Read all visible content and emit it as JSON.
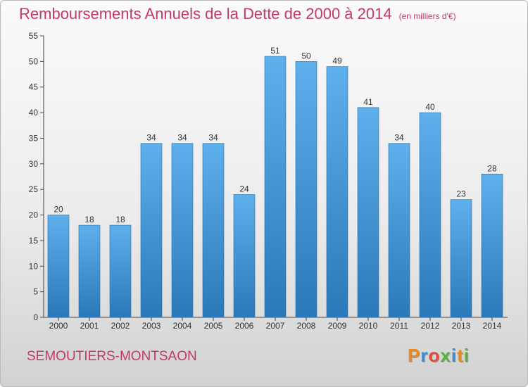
{
  "chart_data": {
    "type": "bar",
    "title": "Remboursements Annuels de la Dette de 2000 à 2014",
    "subtitle": "(en milliers d'€)",
    "categories": [
      "2000",
      "2001",
      "2002",
      "2003",
      "2004",
      "2005",
      "2006",
      "2007",
      "2008",
      "2009",
      "2010",
      "2011",
      "2012",
      "2013",
      "2014"
    ],
    "values": [
      20,
      18,
      18,
      34,
      34,
      34,
      24,
      51,
      50,
      49,
      41,
      34,
      40,
      23,
      28
    ],
    "ylim": [
      0,
      55
    ],
    "yticks": [
      0,
      5,
      10,
      15,
      20,
      25,
      30,
      35,
      40,
      45,
      50,
      55
    ],
    "xlabel": "",
    "ylabel": "",
    "grid": false,
    "bar_color_light": "#5eb0ec",
    "bar_color_dark": "#2a78b9",
    "text_color": "#c1396a"
  },
  "footer": {
    "city": "SEMOUTIERS-MONTSAON",
    "brand_letters": [
      "P",
      "r",
      "o",
      "x",
      "i",
      "t",
      "i"
    ],
    "brand_colors": [
      "#e98b1a",
      "#3a8fd6",
      "#e24a3b",
      "#58b43c",
      "#3a8fd6",
      "#e98b1a",
      "#58b43c"
    ]
  }
}
